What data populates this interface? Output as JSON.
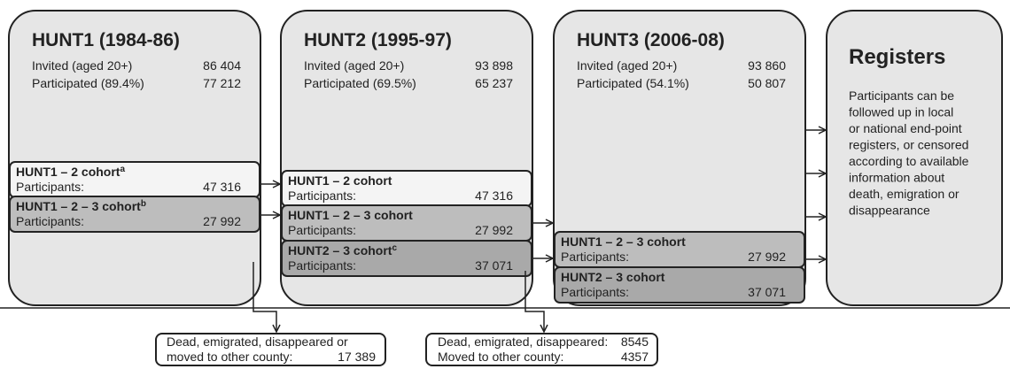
{
  "stages": [
    {
      "title": "HUNT1 (1984-86)",
      "rows": [
        {
          "label": "Invited (aged 20+)",
          "value": "86 404"
        },
        {
          "label": "Participated (89.4%)",
          "value": "77 212"
        }
      ],
      "cohorts": [
        {
          "name": "HUNT1 – 2 cohort",
          "note": "a",
          "label": "Participants:",
          "value": "47 316"
        },
        {
          "name": "HUNT1 – 2 – 3  cohort",
          "note": "b",
          "label": "Participants:",
          "value": "27 992"
        }
      ]
    },
    {
      "title": "HUNT2 (1995-97)",
      "rows": [
        {
          "label": "Invited (aged 20+)",
          "value": "93 898"
        },
        {
          "label": "Participated (69.5%)",
          "value": "65 237"
        }
      ],
      "cohorts": [
        {
          "name": "HUNT1 – 2 cohort",
          "label": "Participants:",
          "value": "47 316"
        },
        {
          "name": "HUNT1 – 2 – 3  cohort",
          "label": "Participants:",
          "value": "27 992"
        },
        {
          "name": "HUNT2 – 3 cohort",
          "note": "c",
          "label": "Participants:",
          "value": "37 071"
        }
      ]
    },
    {
      "title": "HUNT3 (2006-08)",
      "rows": [
        {
          "label": "Invited (aged 20+)",
          "value": "93 860"
        },
        {
          "label": "Participated (54.1%)",
          "value": "50 807"
        }
      ],
      "cohorts": [
        {
          "name": "HUNT1 – 2 – 3  cohort",
          "label": "Participants:",
          "value": "27 992"
        },
        {
          "name": "HUNT2 – 3 cohort",
          "label": "Participants:",
          "value": "37 071"
        }
      ]
    }
  ],
  "registers": {
    "title": "Registers",
    "lines": [
      "Participants can be",
      "followed up in local",
      "or national end-point",
      "registers, or censored",
      "according to available",
      "information about",
      "death, emigration or",
      "disappearance"
    ]
  },
  "outcomes": [
    {
      "lines": [
        {
          "label": "Dead, emigrated, disappeared or"
        },
        {
          "label": "moved to other county:",
          "value": "17 389"
        }
      ]
    },
    {
      "lines": [
        {
          "label": "Dead, emigrated, disappeared:",
          "value": "8545"
        },
        {
          "label": "Moved to other county:",
          "value": "4357"
        }
      ]
    }
  ]
}
